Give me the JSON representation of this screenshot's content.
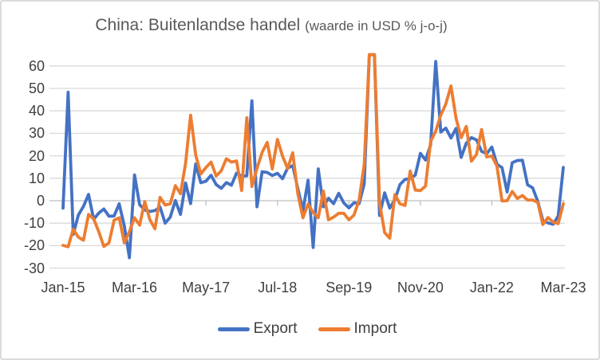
{
  "window": {
    "background": "#ffffff",
    "border_color": "#dcdcdc"
  },
  "chart_data": {
    "type": "line",
    "title": "China: Buitenlandse handel",
    "title_suffix": "(waarde in USD % j-o-j)",
    "frequency": "monthly",
    "x_start": "Jan-2015",
    "x_end": "Mar-2023",
    "x_tick_labels": [
      "Jan-15",
      "Mar-16",
      "May-17",
      "Jul-18",
      "Sep-19",
      "Nov-20",
      "Jan-22",
      "Mar-23"
    ],
    "x_tick_month_indices": [
      0,
      14,
      28,
      42,
      56,
      70,
      84,
      98
    ],
    "y_ticks": [
      60,
      50,
      40,
      30,
      20,
      10,
      0,
      -10,
      -20,
      -30
    ],
    "ylim": [
      -30,
      60
    ],
    "values_above_ymax_clipped": true,
    "grid": "horizontal",
    "gridline_color": "#d9d9d9",
    "axis_line_color": "#bfbfbf",
    "legend_position": "bottom",
    "series": [
      {
        "name": "Export",
        "color": "#4472C4",
        "values": [
          -3.3,
          48.3,
          -15,
          -6.4,
          -2.5,
          2.8,
          -8.3,
          -5.5,
          -3.7,
          -6.9,
          -6.8,
          -1.4,
          -11.2,
          -25.4,
          11.5,
          -1.8,
          -4.1,
          -4.8,
          -4.4,
          -2.8,
          -10,
          -7.3,
          0.1,
          -6.1,
          7.9,
          -1.3,
          16.4,
          8,
          8.7,
          11.3,
          7.2,
          5.5,
          8.1,
          6.9,
          12.3,
          10.9,
          11.1,
          44.5,
          -2.7,
          12.9,
          12.6,
          11.2,
          12.2,
          9.8,
          14.5,
          15.6,
          5.4,
          -4.4,
          9.1,
          -20.8,
          14.2,
          -2.7,
          1.1,
          -1.3,
          3.3,
          -1,
          -3.2,
          -0.9,
          -1.3,
          7.6,
          75,
          75,
          -6.6,
          3.5,
          -3.3,
          0.5,
          7.2,
          9.5,
          9.9,
          11.4,
          21.1,
          18.1,
          24.8,
          62,
          30.6,
          32.3,
          27.9,
          32.2,
          19.3,
          25.6,
          28.1,
          27.1,
          22,
          20.9,
          23.9,
          16.3,
          14.7,
          3.9,
          16.9,
          17.9,
          18,
          7.1,
          5.7,
          -0.3,
          -8.9,
          -9.9,
          -10.5,
          -6.8,
          14.8
        ]
      },
      {
        "name": "Import",
        "color": "#ED7D31",
        "values": [
          -19.9,
          -20.5,
          -12.7,
          -16.2,
          -17.6,
          -6.1,
          -8.1,
          -13.8,
          -20.4,
          -18.8,
          -8.7,
          -7.6,
          -18.8,
          -13.8,
          -7.6,
          -10.9,
          -0.4,
          -8.4,
          -12.5,
          1.5,
          -1.9,
          -1.4,
          6.7,
          3.1,
          16.7,
          38.1,
          20.3,
          11.9,
          14.8,
          17.2,
          11,
          13.3,
          18.7,
          17.2,
          17.7,
          4.5,
          36.9,
          6.3,
          14.4,
          21.5,
          26,
          14.1,
          27.3,
          19.9,
          14.3,
          21.4,
          3,
          -7.6,
          -1.5,
          -5.2,
          -7.6,
          4.3,
          -8.5,
          -7.3,
          -5.6,
          -5.6,
          -8.5,
          -6.4,
          0.3,
          16.2,
          75,
          75,
          -0.9,
          -14.2,
          -16.7,
          2.7,
          -1.4,
          -2.1,
          13.2,
          4.7,
          4.5,
          6.5,
          26.4,
          31,
          38.1,
          43.1,
          51.1,
          36.7,
          28.1,
          33.1,
          17.6,
          20.6,
          31.7,
          19.5,
          19.9,
          15.5,
          -0.1,
          0,
          4.1,
          1,
          2.3,
          0.3,
          0.3,
          -0.7,
          -10.6,
          -7.5,
          -9.5,
          -10.2,
          -1.4
        ]
      }
    ]
  }
}
